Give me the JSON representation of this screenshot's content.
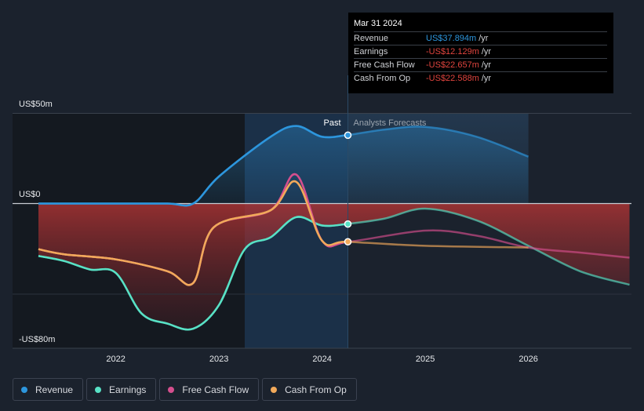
{
  "chart_data": {
    "type": "area",
    "y_axis": {
      "top_label": "US$50m",
      "zero_label": "US$0",
      "bottom_label": "-US$80m",
      "ylim": [
        -80,
        50
      ]
    },
    "x_axis": {
      "ticks": [
        "2022",
        "2023",
        "2024",
        "2025",
        "2026"
      ],
      "xlim": [
        2021.25,
        2026.98
      ]
    },
    "past_label": "Past",
    "forecast_label": "Analysts Forecasts",
    "divider_x": 2024.25,
    "past_shade_start": 2023.25,
    "series": [
      {
        "name": "Revenue",
        "color": "#2d96dd",
        "points": [
          [
            2021.25,
            0
          ],
          [
            2022.0,
            0
          ],
          [
            2022.5,
            0
          ],
          [
            2022.75,
            0
          ],
          [
            2023.0,
            15
          ],
          [
            2023.5,
            37
          ],
          [
            2023.75,
            43
          ],
          [
            2024.0,
            37
          ],
          [
            2024.25,
            38
          ],
          [
            2024.6,
            41
          ],
          [
            2025.0,
            42.5
          ],
          [
            2025.5,
            37
          ],
          [
            2026.0,
            26
          ]
        ]
      },
      {
        "name": "Earnings",
        "color": "#58e1c5",
        "points": [
          [
            2021.25,
            -31
          ],
          [
            2021.5,
            -34
          ],
          [
            2021.75,
            -39
          ],
          [
            2022.0,
            -41
          ],
          [
            2022.25,
            -65
          ],
          [
            2022.5,
            -71
          ],
          [
            2022.75,
            -74
          ],
          [
            2023.0,
            -60
          ],
          [
            2023.25,
            -27
          ],
          [
            2023.5,
            -20
          ],
          [
            2023.75,
            -8
          ],
          [
            2024.0,
            -13
          ],
          [
            2024.25,
            -12
          ],
          [
            2024.6,
            -9
          ],
          [
            2025.0,
            -3
          ],
          [
            2025.5,
            -10
          ],
          [
            2026.0,
            -25
          ],
          [
            2026.5,
            -40
          ],
          [
            2026.98,
            -48
          ]
        ]
      },
      {
        "name": "Free Cash Flow",
        "color": "#d54f8e",
        "points": [
          [
            2021.25,
            -27
          ],
          [
            2021.5,
            -30
          ],
          [
            2022.0,
            -33
          ],
          [
            2022.5,
            -40
          ],
          [
            2022.75,
            -47
          ],
          [
            2022.95,
            -14
          ],
          [
            2023.5,
            -4
          ],
          [
            2023.75,
            16
          ],
          [
            2024.0,
            -22
          ],
          [
            2024.25,
            -22.7
          ],
          [
            2025.0,
            -16
          ],
          [
            2025.5,
            -19
          ],
          [
            2026.0,
            -26
          ],
          [
            2026.5,
            -29
          ],
          [
            2026.98,
            -32
          ]
        ]
      },
      {
        "name": "Cash From Op",
        "color": "#f1a95a",
        "points": [
          [
            2021.25,
            -27
          ],
          [
            2021.5,
            -30
          ],
          [
            2022.0,
            -33
          ],
          [
            2022.5,
            -40
          ],
          [
            2022.75,
            -47
          ],
          [
            2022.95,
            -14
          ],
          [
            2023.5,
            -4
          ],
          [
            2023.75,
            12
          ],
          [
            2024.0,
            -22
          ],
          [
            2024.25,
            -22.6
          ],
          [
            2025.0,
            -25
          ],
          [
            2026.0,
            -26
          ]
        ]
      }
    ],
    "markers": [
      {
        "series": "Revenue",
        "x": 2024.25,
        "y": 37.894
      },
      {
        "series": "Earnings",
        "x": 2024.25,
        "y": -12.129
      },
      {
        "series": "Cash From Op",
        "x": 2024.25,
        "y": -22.6
      }
    ]
  },
  "tooltip": {
    "date": "Mar 31 2024",
    "rows": [
      {
        "label": "Revenue",
        "value": "US$37.894m",
        "unit": "/yr",
        "color": "#2d96dd"
      },
      {
        "label": "Earnings",
        "value": "-US$12.129m",
        "unit": "/yr",
        "color": "#e0443e"
      },
      {
        "label": "Free Cash Flow",
        "value": "-US$22.657m",
        "unit": "/yr",
        "color": "#e0443e"
      },
      {
        "label": "Cash From Op",
        "value": "-US$22.588m",
        "unit": "/yr",
        "color": "#e0443e"
      }
    ]
  },
  "legend": [
    {
      "label": "Revenue",
      "color": "#2d96dd"
    },
    {
      "label": "Earnings",
      "color": "#58e1c5"
    },
    {
      "label": "Free Cash Flow",
      "color": "#d54f8e"
    },
    {
      "label": "Cash From Op",
      "color": "#f1a95a"
    }
  ]
}
